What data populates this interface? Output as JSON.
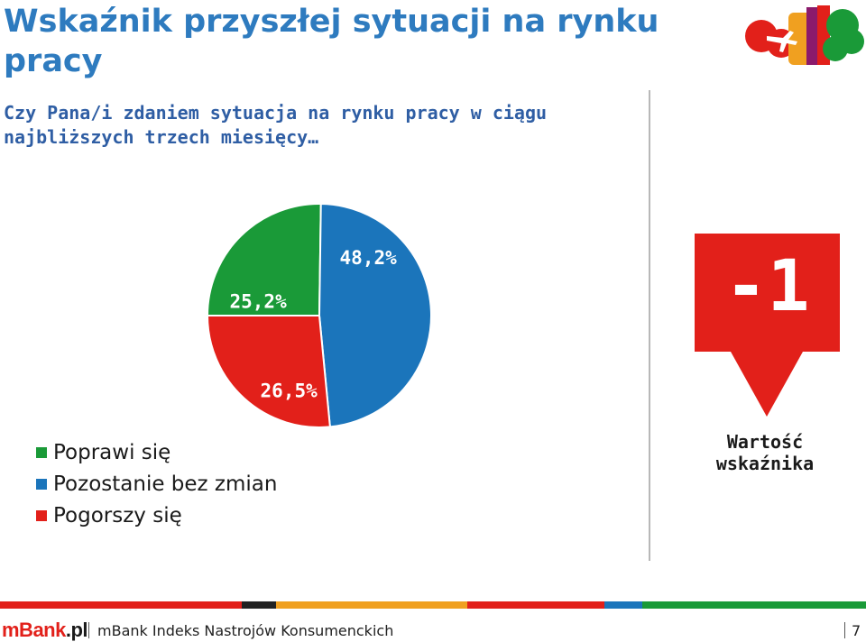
{
  "header": {
    "title": "Wskaźnik przyszłej sytuacji na rynku pracy",
    "question": "Czy Pana/i zdaniem sytuacja na rynku pracy w ciągu najbliższych trzech miesięcy…"
  },
  "chart_data": {
    "type": "pie",
    "title": "",
    "slices": [
      {
        "name": "Poprawi się",
        "value": 25.2,
        "label": "25,2%",
        "color": "#1a9a38"
      },
      {
        "name": "Pozostanie bez zmian",
        "value": 48.2,
        "label": "48,2%",
        "color": "#1b75bb"
      },
      {
        "name": "Pogorszy się",
        "value": 26.5,
        "label": "26,5%",
        "color": "#e2201a"
      }
    ],
    "legend_position": "bottom-left",
    "legend": [
      "Poprawi się",
      "Pozostanie bez zmian",
      "Pogorszy się"
    ]
  },
  "indicator": {
    "value": "-1",
    "caption": "Wartość wskaźnika",
    "color": "#e2201a",
    "direction_icon": "arrow-down-icon"
  },
  "footer": {
    "brand": "mBank",
    "brand_suffix": ".pl",
    "text": "mBank Indeks Nastrojów Konsumenckich",
    "page": "7",
    "stripe_colors": [
      "#e2201a",
      "#222222",
      "#f0a020",
      "#e2201a",
      "#1b75bb",
      "#1a9a38"
    ]
  },
  "logo": {
    "icon": "travel-logo-icon",
    "colors": [
      "#e2201a",
      "#f0a020",
      "#1a9a38",
      "#1b75bb",
      "#8b1a6b"
    ]
  }
}
